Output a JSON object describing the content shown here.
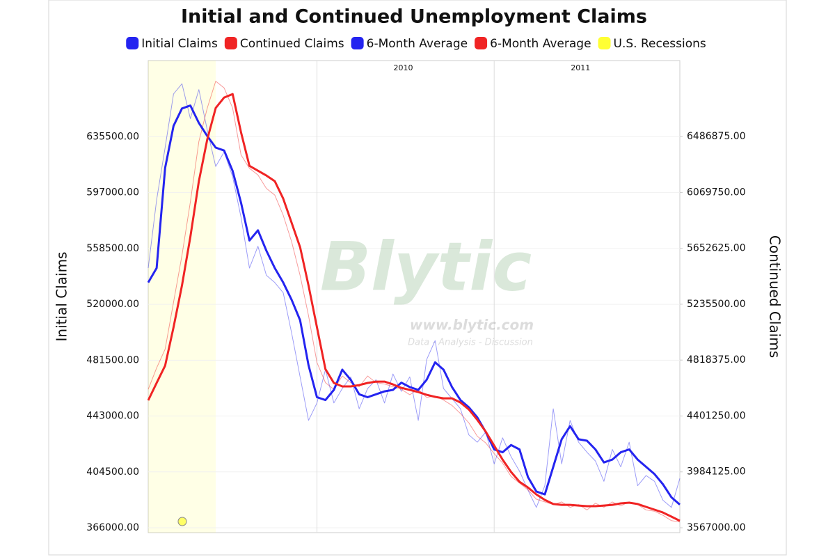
{
  "chart_data": {
    "type": "line",
    "title": "Initial and Continued Unemployment Claims",
    "ylabel": "Initial Claims",
    "y2label": "Continued Claims",
    "watermark": {
      "logo": "Blytic",
      "url": "www.blytic.com",
      "tagline": "Data - Analysis - Discussion"
    },
    "categories": [
      null,
      null,
      null,
      null,
      null,
      null,
      null,
      null,
      null,
      null,
      null,
      null,
      null,
      null,
      null,
      null,
      null,
      null,
      null,
      null,
      "2010",
      null,
      null,
      null,
      null,
      null,
      null,
      null,
      null,
      null,
      null,
      null,
      null,
      null,
      null,
      null,
      null,
      null,
      null,
      null,
      null,
      "2011",
      null,
      null,
      null,
      null,
      null,
      null,
      null,
      null,
      null,
      null,
      null,
      null,
      null,
      null,
      null,
      null,
      null,
      null,
      null,
      null,
      null,
      null
    ],
    "ylim": [
      366000,
      688000
    ],
    "yticks": [
      {
        "value": 366000,
        "label": "366000.00"
      },
      {
        "value": 404500,
        "label": "404500.00"
      },
      {
        "value": 443000,
        "label": "443000.00"
      },
      {
        "value": 481500,
        "label": "481500.00"
      },
      {
        "value": 520000,
        "label": "520000.00"
      },
      {
        "value": 558500,
        "label": "558500.00"
      },
      {
        "value": 597000,
        "label": "597000.00"
      },
      {
        "value": 635500,
        "label": "635500.00"
      }
    ],
    "y2lim": [
      3567000,
      7054000
    ],
    "y2ticks": [
      {
        "value": 3567000,
        "label": "3567000.00"
      },
      {
        "value": 3984125,
        "label": "3984125.00"
      },
      {
        "value": 4401250,
        "label": "4401250.00"
      },
      {
        "value": 4818375,
        "label": "4818375.00"
      },
      {
        "value": 5235500,
        "label": "5235500.00"
      },
      {
        "value": 5652625,
        "label": "5652625.00"
      },
      {
        "value": 6069750,
        "label": "6069750.00"
      },
      {
        "value": 6486875,
        "label": "6486875.00"
      }
    ],
    "grid": true,
    "legend": "top",
    "series": [
      {
        "name": "Initial Claims",
        "color": "#2424f0",
        "line_width": 1,
        "values": [
          545000,
          592000,
          628000,
          665000,
          672000,
          648000,
          668000,
          640000,
          615000,
          625000,
          608000,
          580000,
          545000,
          560000,
          540000,
          535000,
          528000,
          500000,
          470000,
          440000,
          452000,
          475000,
          452000,
          462000,
          470000,
          448000,
          462000,
          468000,
          452000,
          472000,
          460000,
          470000,
          440000,
          482000,
          495000,
          462000,
          455000,
          448000,
          430000,
          425000,
          432000,
          410000,
          428000,
          415000,
          405000,
          392000,
          380000,
          395000,
          448000,
          410000,
          440000,
          425000,
          418000,
          412000,
          398000,
          420000,
          408000,
          425000,
          395000,
          402000,
          398000,
          385000,
          380000,
          400000
        ]
      },
      {
        "name": "Continued Claims",
        "color": "#f02424",
        "line_width": 1,
        "axis": "y2",
        "values": [
          4600000,
          4760000,
          4900000,
          5250000,
          5600000,
          6000000,
          6450000,
          6700000,
          6900000,
          6850000,
          6700000,
          6350000,
          6250000,
          6200000,
          6100000,
          6050000,
          5900000,
          5700000,
          5450000,
          5150000,
          4800000,
          4650000,
          4600000,
          4700000,
          4650000,
          4620000,
          4700000,
          4650000,
          4640000,
          4620000,
          4600000,
          4560000,
          4600000,
          4540000,
          4550000,
          4520000,
          4480000,
          4420000,
          4350000,
          4250000,
          4200000,
          4120000,
          4050000,
          3950000,
          3900000,
          3850000,
          3780000,
          3760000,
          3740000,
          3760000,
          3720000,
          3740000,
          3700000,
          3750000,
          3720000,
          3760000,
          3730000,
          3760000,
          3740000,
          3700000,
          3690000,
          3660000,
          3620000,
          3610000
        ]
      },
      {
        "name": "6-Month Average",
        "color": "#2424f0",
        "line_width": 3,
        "values": [
          535000,
          545000,
          614000,
          643000,
          655000,
          657000,
          645000,
          636000,
          628000,
          626000,
          612000,
          590000,
          564000,
          571000,
          557000,
          545000,
          535000,
          523000,
          509000,
          478000,
          456000,
          454000,
          461000,
          475000,
          468000,
          458000,
          456000,
          458000,
          460000,
          461000,
          466000,
          463000,
          461000,
          468000,
          480000,
          475000,
          463000,
          454000,
          449000,
          442000,
          432000,
          420000,
          418000,
          423000,
          420000,
          401000,
          391000,
          389000,
          408000,
          427000,
          436000,
          427000,
          426000,
          420000,
          411000,
          413000,
          418000,
          420000,
          413000,
          408000,
          403000,
          396000,
          387000,
          382000
        ]
      },
      {
        "name": "6-Month Average",
        "color": "#f02424",
        "line_width": 3,
        "axis": "y2",
        "values": [
          4518000,
          4648000,
          4777000,
          5063000,
          5375000,
          5739000,
          6154000,
          6466000,
          6700000,
          6778000,
          6804000,
          6518000,
          6268000,
          6232000,
          6196000,
          6154000,
          6024000,
          5842000,
          5661000,
          5375000,
          5063000,
          4751000,
          4648000,
          4622000,
          4622000,
          4632000,
          4648000,
          4658000,
          4658000,
          4637000,
          4611000,
          4596000,
          4580000,
          4559000,
          4544000,
          4533000,
          4533000,
          4502000,
          4450000,
          4372000,
          4284000,
          4180000,
          4076000,
          3983000,
          3910000,
          3868000,
          3816000,
          3775000,
          3744000,
          3738000,
          3738000,
          3733000,
          3728000,
          3728000,
          3733000,
          3738000,
          3749000,
          3754000,
          3744000,
          3723000,
          3702000,
          3681000,
          3650000,
          3619000
        ]
      }
    ],
    "recessions": {
      "name": "U.S. Recessions",
      "color": "#ffff33",
      "ranges": [
        [
          0,
          8
        ]
      ]
    }
  }
}
